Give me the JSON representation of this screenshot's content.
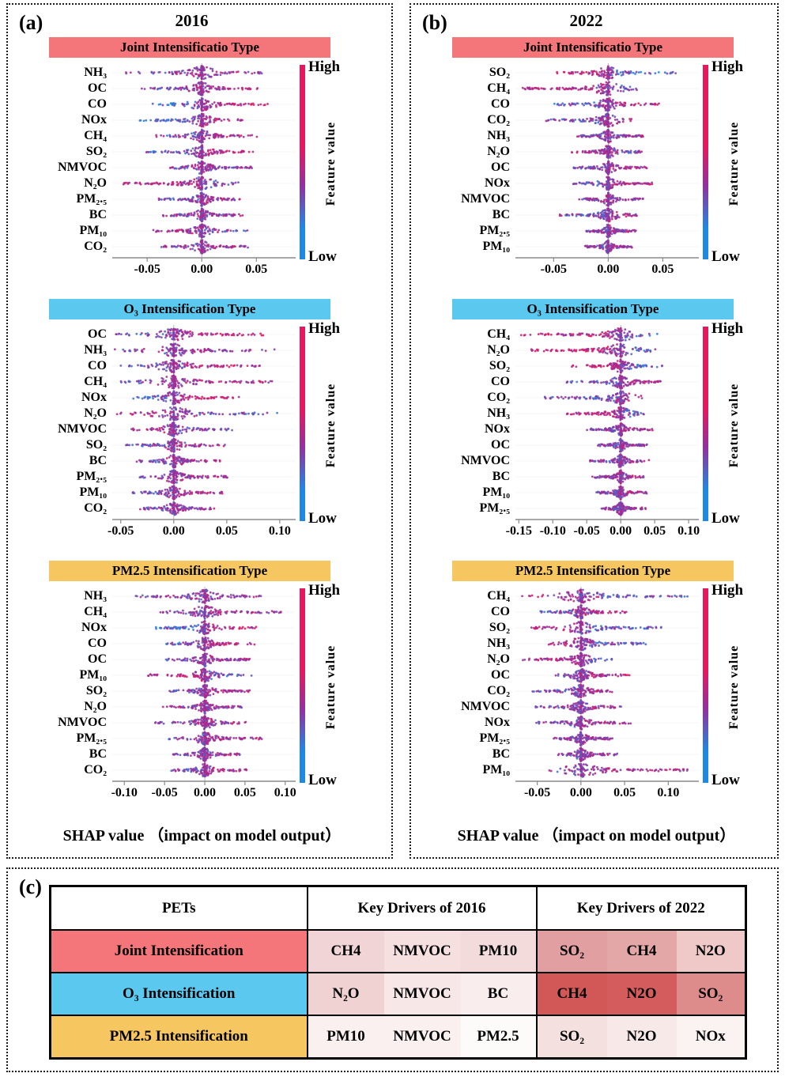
{
  "panels": {
    "a": {
      "label": "(a)",
      "title": "2016"
    },
    "b": {
      "label": "(b)",
      "title": "2022"
    }
  },
  "colorbar": {
    "high": "High",
    "low": "Low",
    "label": "Feature value",
    "color_high": "#e8175d",
    "color_mid": "#942fa0",
    "color_low": "#1e88e5"
  },
  "xlabel": "SHAP value （impact on model output）",
  "chart_data": [
    {
      "panel": "a",
      "type": "beeswarm",
      "title": "Joint Intensificatio Type",
      "header_color": "#f4767a",
      "xlim": [
        -0.082,
        0.086
      ],
      "xticks": [
        -0.05,
        0.0,
        0.05
      ],
      "xtick_labels": [
        "-0.05",
        "0.00",
        "0.05"
      ],
      "features": [
        {
          "name": "NH₃",
          "min": -0.072,
          "max": 0.055,
          "corr": 0.1
        },
        {
          "name": "OC",
          "min": -0.055,
          "max": 0.052,
          "corr": 0.3
        },
        {
          "name": "CO",
          "min": -0.048,
          "max": 0.062,
          "corr": 0.5
        },
        {
          "name": "NOx",
          "min": -0.058,
          "max": 0.042,
          "corr": 0.6
        },
        {
          "name": "CH₄",
          "min": -0.042,
          "max": 0.052,
          "corr": 0.2
        },
        {
          "name": "SO₂",
          "min": -0.052,
          "max": 0.048,
          "corr": 0.5
        },
        {
          "name": "NMVOC",
          "min": -0.032,
          "max": 0.046,
          "corr": 0.1
        },
        {
          "name": "N₂O",
          "min": -0.075,
          "max": 0.036,
          "corr": -0.4
        },
        {
          "name": "PM₂.₅",
          "min": -0.04,
          "max": 0.037,
          "corr": 0.2
        },
        {
          "name": "BC",
          "min": -0.036,
          "max": 0.038,
          "corr": 0.0
        },
        {
          "name": "PM₁₀",
          "min": -0.046,
          "max": 0.042,
          "corr": -0.2
        },
        {
          "name": "CO₂",
          "min": -0.037,
          "max": 0.046,
          "corr": 0.2
        }
      ]
    },
    {
      "panel": "a",
      "type": "beeswarm",
      "title": "O₃ Intensification Type",
      "header_color": "#5bc8f0",
      "xlim": [
        -0.058,
        0.115
      ],
      "xticks": [
        -0.05,
        0.0,
        0.05,
        0.1
      ],
      "xtick_labels": [
        "-0.05",
        "0.00",
        "0.05",
        "0.10"
      ],
      "features": [
        {
          "name": "OC",
          "min": -0.055,
          "max": 0.085,
          "corr": 0.5
        },
        {
          "name": "NH₃",
          "min": -0.06,
          "max": 0.1,
          "corr": 0.1
        },
        {
          "name": "CO",
          "min": -0.05,
          "max": 0.082,
          "corr": 0.4
        },
        {
          "name": "CH₄",
          "min": -0.05,
          "max": 0.096,
          "corr": 0.3
        },
        {
          "name": "NOx",
          "min": -0.04,
          "max": 0.062,
          "corr": 0.6
        },
        {
          "name": "N₂O",
          "min": -0.055,
          "max": 0.1,
          "corr": -0.3
        },
        {
          "name": "NMVOC",
          "min": -0.042,
          "max": 0.056,
          "corr": -0.2
        },
        {
          "name": "SO₂",
          "min": -0.046,
          "max": 0.052,
          "corr": 0.2
        },
        {
          "name": "BC",
          "min": -0.036,
          "max": 0.046,
          "corr": 0.1
        },
        {
          "name": "PM₂.₅",
          "min": -0.032,
          "max": 0.052,
          "corr": 0.2
        },
        {
          "name": "PM₁₀",
          "min": -0.04,
          "max": 0.046,
          "corr": 0.3
        },
        {
          "name": "CO₂",
          "min": -0.032,
          "max": 0.042,
          "corr": 0.1
        }
      ]
    },
    {
      "panel": "a",
      "type": "beeswarm",
      "title": "PM2.5 Intensification Type",
      "header_color": "#f6c761",
      "xlim": [
        -0.115,
        0.113
      ],
      "xticks": [
        -0.1,
        -0.05,
        0.0,
        0.05,
        0.1
      ],
      "xtick_labels": [
        "-0.10",
        "-0.05",
        "0.00",
        "0.05",
        "0.10"
      ],
      "features": [
        {
          "name": "NH₃",
          "min": -0.092,
          "max": 0.076,
          "corr": 0.1
        },
        {
          "name": "CH₄",
          "min": -0.056,
          "max": 0.096,
          "corr": 0.2
        },
        {
          "name": "NOx",
          "min": -0.062,
          "max": 0.066,
          "corr": 0.5
        },
        {
          "name": "CO",
          "min": -0.048,
          "max": 0.062,
          "corr": 0.5
        },
        {
          "name": "OC",
          "min": -0.052,
          "max": 0.056,
          "corr": 0.2
        },
        {
          "name": "PM₁₀",
          "min": -0.072,
          "max": 0.062,
          "corr": -0.5
        },
        {
          "name": "SO₂",
          "min": -0.046,
          "max": 0.056,
          "corr": 0.2
        },
        {
          "name": "N₂O",
          "min": -0.052,
          "max": 0.047,
          "corr": 0.0
        },
        {
          "name": "NMVOC",
          "min": -0.062,
          "max": 0.052,
          "corr": 0.1
        },
        {
          "name": "PM₂.₅",
          "min": -0.047,
          "max": 0.072,
          "corr": 0.2
        },
        {
          "name": "BC",
          "min": -0.042,
          "max": 0.046,
          "corr": 0.1
        },
        {
          "name": "CO₂",
          "min": -0.042,
          "max": 0.056,
          "corr": 0.2
        }
      ]
    },
    {
      "panel": "b",
      "type": "beeswarm",
      "title": "Joint Intensificatio Type",
      "header_color": "#f4767a",
      "xlim": [
        -0.085,
        0.083
      ],
      "xticks": [
        -0.05,
        0.0,
        0.05
      ],
      "xtick_labels": [
        "-0.05",
        "0.00",
        "0.05"
      ],
      "features": [
        {
          "name": "SO₂",
          "min": -0.047,
          "max": 0.062,
          "corr": -0.6
        },
        {
          "name": "CH₄",
          "min": -0.08,
          "max": 0.027,
          "corr": -0.5
        },
        {
          "name": "CO",
          "min": -0.052,
          "max": 0.047,
          "corr": 0.4
        },
        {
          "name": "CO₂",
          "min": -0.067,
          "max": 0.022,
          "corr": 0.3
        },
        {
          "name": "NH₃",
          "min": -0.032,
          "max": 0.032,
          "corr": 0.1
        },
        {
          "name": "N₂O",
          "min": -0.037,
          "max": 0.032,
          "corr": -0.2
        },
        {
          "name": "OC",
          "min": -0.032,
          "max": 0.036,
          "corr": 0.2
        },
        {
          "name": "NOx",
          "min": -0.032,
          "max": 0.042,
          "corr": 0.3
        },
        {
          "name": "NMVOC",
          "min": -0.027,
          "max": 0.032,
          "corr": 0.1
        },
        {
          "name": "BC",
          "min": -0.047,
          "max": 0.027,
          "corr": 0.2
        },
        {
          "name": "PM₂.₅",
          "min": -0.022,
          "max": 0.027,
          "corr": 0.1
        },
        {
          "name": "PM₁₀",
          "min": -0.022,
          "max": 0.022,
          "corr": 0.1
        }
      ]
    },
    {
      "panel": "b",
      "type": "beeswarm",
      "title": "O₃ Intensification Type",
      "header_color": "#5bc8f0",
      "xlim": [
        -0.155,
        0.115
      ],
      "xticks": [
        -0.15,
        -0.1,
        -0.05,
        0.0,
        0.05,
        0.1
      ],
      "xtick_labels": [
        "-0.15",
        "-0.10",
        "-0.05",
        "0.00",
        "0.05",
        "0.10"
      ],
      "features": [
        {
          "name": "CH₄",
          "min": -0.147,
          "max": 0.057,
          "corr": -0.5
        },
        {
          "name": "N₂O",
          "min": -0.132,
          "max": 0.052,
          "corr": -0.5
        },
        {
          "name": "SO₂",
          "min": -0.072,
          "max": 0.062,
          "corr": -0.6
        },
        {
          "name": "CO",
          "min": -0.082,
          "max": 0.067,
          "corr": 0.3
        },
        {
          "name": "CO₂",
          "min": -0.112,
          "max": 0.032,
          "corr": 0.3
        },
        {
          "name": "NH₃",
          "min": -0.082,
          "max": 0.037,
          "corr": -0.4
        },
        {
          "name": "NOx",
          "min": -0.052,
          "max": 0.047,
          "corr": 0.2
        },
        {
          "name": "OC",
          "min": -0.037,
          "max": 0.042,
          "corr": 0.1
        },
        {
          "name": "NMVOC",
          "min": -0.047,
          "max": 0.042,
          "corr": 0.1
        },
        {
          "name": "BC",
          "min": -0.042,
          "max": 0.037,
          "corr": 0.1
        },
        {
          "name": "PM₁₀",
          "min": -0.037,
          "max": 0.042,
          "corr": 0.2
        },
        {
          "name": "PM₂.₅",
          "min": -0.032,
          "max": 0.037,
          "corr": 0.1
        }
      ]
    },
    {
      "panel": "b",
      "type": "beeswarm",
      "title": "PM2.5 Intensification Type",
      "header_color": "#f6c761",
      "xlim": [
        -0.075,
        0.135
      ],
      "xticks": [
        -0.05,
        0.0,
        0.05,
        0.1
      ],
      "xtick_labels": [
        "-0.05",
        "0.00",
        "0.05",
        "0.10"
      ],
      "features": [
        {
          "name": "CH₄",
          "min": -0.07,
          "max": 0.122,
          "corr": -0.3
        },
        {
          "name": "CO",
          "min": -0.047,
          "max": 0.052,
          "corr": 0.3
        },
        {
          "name": "SO₂",
          "min": -0.057,
          "max": 0.092,
          "corr": -0.5
        },
        {
          "name": "NH₃",
          "min": -0.037,
          "max": 0.082,
          "corr": -0.4
        },
        {
          "name": "N₂O",
          "min": -0.067,
          "max": 0.037,
          "corr": -0.3
        },
        {
          "name": "OC",
          "min": -0.032,
          "max": 0.057,
          "corr": 0.4
        },
        {
          "name": "CO₂",
          "min": -0.057,
          "max": 0.042,
          "corr": 0.3
        },
        {
          "name": "NMVOC",
          "min": -0.052,
          "max": 0.047,
          "corr": 0.1
        },
        {
          "name": "NOx",
          "min": -0.052,
          "max": 0.057,
          "corr": 0.2
        },
        {
          "name": "PM₂.₅",
          "min": -0.032,
          "max": 0.037,
          "corr": 0.1
        },
        {
          "name": "BC",
          "min": -0.027,
          "max": 0.042,
          "corr": 0.2
        },
        {
          "name": "PM₁₀",
          "min": -0.037,
          "max": 0.122,
          "corr": 0.3
        }
      ]
    }
  ],
  "table": {
    "panel_label": "(c)",
    "columns": [
      "PETs",
      "Key Drivers of 2016",
      "Key Drivers of 2022"
    ],
    "rows": [
      {
        "pet": "Joint Intensification",
        "pet_bg": "#f4767a",
        "d2016": [
          {
            "t": "CH4",
            "bg": "#f1d5d6"
          },
          {
            "t": "NMVOC",
            "bg": "#f5dfdf"
          },
          {
            "t": "PM10",
            "bg": "#f3dbdb"
          }
        ],
        "d2022": [
          {
            "t": "SO₂",
            "bg": "#e19fa1"
          },
          {
            "t": "CH4",
            "bg": "#e4a7a7"
          },
          {
            "t": "N2O",
            "bg": "#efc8c8"
          }
        ]
      },
      {
        "pet": "O₃ Intensification",
        "pet_bg": "#5bc8f0",
        "d2016": [
          {
            "t": "N₂O",
            "bg": "#f0d2d3"
          },
          {
            "t": "NMVOC",
            "bg": "#f7e7e7"
          },
          {
            "t": "BC",
            "bg": "#f9eded"
          }
        ],
        "d2022": [
          {
            "t": "CH4",
            "bg": "#d25757"
          },
          {
            "t": "N2O",
            "bg": "#d45c5c"
          },
          {
            "t": "SO₂",
            "bg": "#de8b8b"
          }
        ]
      },
      {
        "pet": "PM2.5 Intensification",
        "pet_bg": "#f6c761",
        "d2016": [
          {
            "t": "PM10",
            "bg": "#faf0f0"
          },
          {
            "t": "NMVOC",
            "bg": "#faf0f0"
          },
          {
            "t": "PM2.5",
            "bg": "#fdfafa"
          }
        ],
        "d2022": [
          {
            "t": "SO₂",
            "bg": "#f5e0e0"
          },
          {
            "t": "N2O",
            "bg": "#f8e9e9"
          },
          {
            "t": "NOx",
            "bg": "#fbf2f2"
          }
        ]
      }
    ]
  }
}
